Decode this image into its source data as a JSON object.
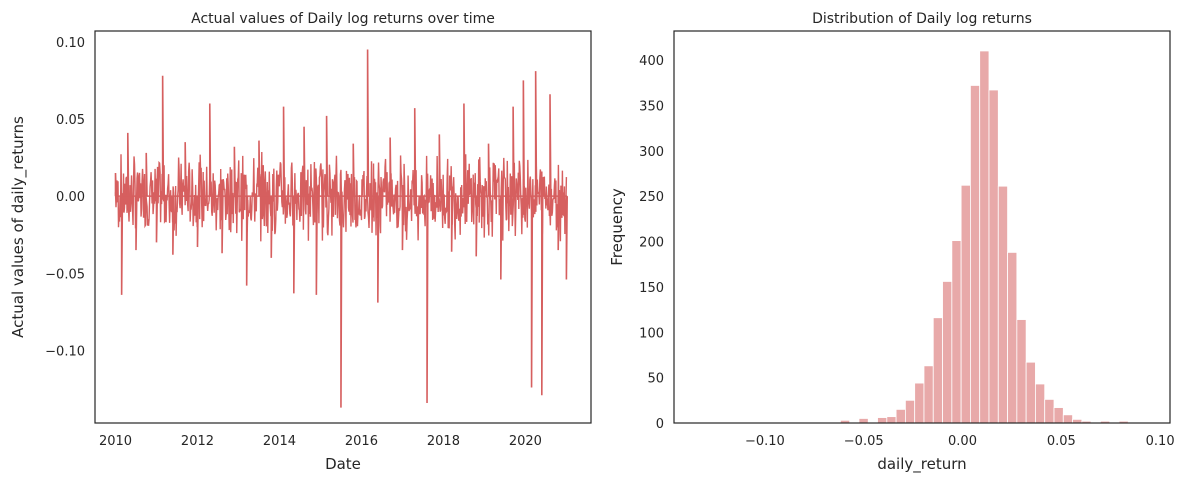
{
  "chart_data": [
    {
      "type": "line",
      "title": "Actual values of Daily log returns over time",
      "xlabel": "Date",
      "ylabel": "Actual values of daily_returns",
      "xlim": [
        2009.5,
        2021.6
      ],
      "ylim": [
        -0.147,
        0.107
      ],
      "xticks": [
        2010,
        2012,
        2014,
        2016,
        2018,
        2020
      ],
      "xtick_labels": [
        "2010",
        "2012",
        "2014",
        "2016",
        "2018",
        "2020"
      ],
      "yticks": [
        -0.1,
        -0.05,
        0.0,
        0.05,
        0.1
      ],
      "ytick_labels": [
        "−0.10",
        "−0.05",
        "0.00",
        "0.05",
        "0.10"
      ],
      "grid": false,
      "series": [
        {
          "color": "#d65f5f",
          "x": [
            2010.0,
            2010.15,
            2010.3,
            2010.5,
            2010.75,
            2011.0,
            2011.15,
            2011.4,
            2011.7,
            2012.0,
            2012.3,
            2012.6,
            2012.9,
            2013.2,
            2013.5,
            2013.8,
            2014.1,
            2014.35,
            2014.6,
            2014.9,
            2015.15,
            2015.5,
            2015.8,
            2016.15,
            2016.4,
            2016.7,
            2017.0,
            2017.3,
            2017.6,
            2017.9,
            2018.2,
            2018.5,
            2018.8,
            2019.1,
            2019.4,
            2019.7,
            2019.95,
            2020.15,
            2020.25,
            2020.4,
            2020.6,
            2020.8,
            2021.0
          ],
          "y": [
            0.015,
            -0.064,
            0.041,
            -0.035,
            0.028,
            -0.03,
            0.078,
            -0.038,
            0.035,
            -0.033,
            0.06,
            -0.037,
            0.032,
            -0.058,
            0.036,
            -0.04,
            0.058,
            -0.063,
            0.045,
            -0.064,
            0.052,
            -0.137,
            0.034,
            0.095,
            -0.069,
            0.038,
            -0.035,
            0.057,
            -0.134,
            0.04,
            -0.036,
            0.06,
            -0.039,
            0.034,
            -0.054,
            0.058,
            0.075,
            -0.124,
            0.081,
            -0.129,
            0.066,
            -0.035,
            -0.054
          ]
        }
      ]
    },
    {
      "type": "bar",
      "title": "Distribution of Daily log returns",
      "xlabel": "daily_return",
      "ylabel": "Frequency",
      "xlim": [
        -0.146,
        0.105
      ],
      "ylim": [
        0,
        432
      ],
      "xticks": [
        -0.1,
        -0.05,
        0.0,
        0.05,
        0.1
      ],
      "xtick_labels": [
        "−0.10",
        "−0.05",
        "0.00",
        "0.05",
        "0.10"
      ],
      "yticks": [
        0,
        50,
        100,
        150,
        200,
        250,
        300,
        350,
        400
      ],
      "ytick_labels": [
        "0",
        "50",
        "100",
        "150",
        "200",
        "250",
        "300",
        "350",
        "400"
      ],
      "grid": false,
      "color": "#e8a9a9",
      "bin_start": -0.137,
      "bin_width": 0.0047,
      "values": [
        1,
        0,
        0,
        0,
        0,
        0,
        0,
        0,
        0,
        0,
        0,
        0,
        0,
        0,
        0,
        1,
        3,
        0,
        5,
        1,
        6,
        7,
        15,
        25,
        44,
        63,
        116,
        156,
        201,
        262,
        372,
        410,
        367,
        261,
        188,
        114,
        67,
        43,
        26,
        17,
        9,
        4,
        2,
        1,
        2,
        0,
        2,
        1
      ]
    }
  ]
}
